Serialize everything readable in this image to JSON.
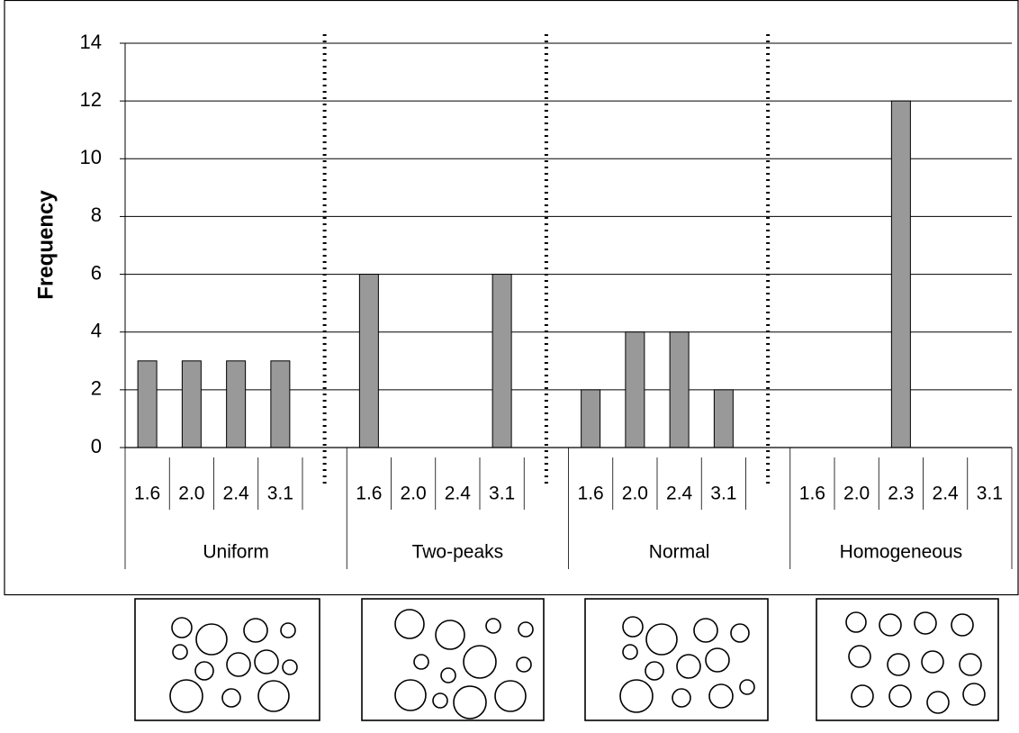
{
  "chart_data": {
    "type": "bar",
    "y_label": "Frequency",
    "color": "#999999",
    "ylim": [
      0,
      14
    ],
    "yticks": [
      0,
      2,
      4,
      6,
      8,
      10,
      12,
      14
    ],
    "grid": true,
    "groups": [
      {
        "name": "Uniform",
        "categories": [
          "1.6",
          "2.0",
          "2.4",
          "3.1",
          null
        ],
        "values": [
          3,
          3,
          3,
          3,
          null
        ]
      },
      {
        "name": "Two-peaks",
        "categories": [
          "1.6",
          "2.0",
          "2.4",
          "3.1",
          null
        ],
        "values": [
          6,
          0,
          0,
          6,
          null
        ]
      },
      {
        "name": "Normal",
        "categories": [
          "1.6",
          "2.0",
          "2.4",
          "3.1",
          null
        ],
        "values": [
          2,
          4,
          4,
          2,
          null
        ]
      },
      {
        "name": "Homogeneous",
        "categories": [
          "1.6",
          "2.0",
          "2.3",
          "2.4",
          "3.1"
        ],
        "values": [
          0,
          0,
          12,
          0,
          0
        ]
      }
    ]
  }
}
